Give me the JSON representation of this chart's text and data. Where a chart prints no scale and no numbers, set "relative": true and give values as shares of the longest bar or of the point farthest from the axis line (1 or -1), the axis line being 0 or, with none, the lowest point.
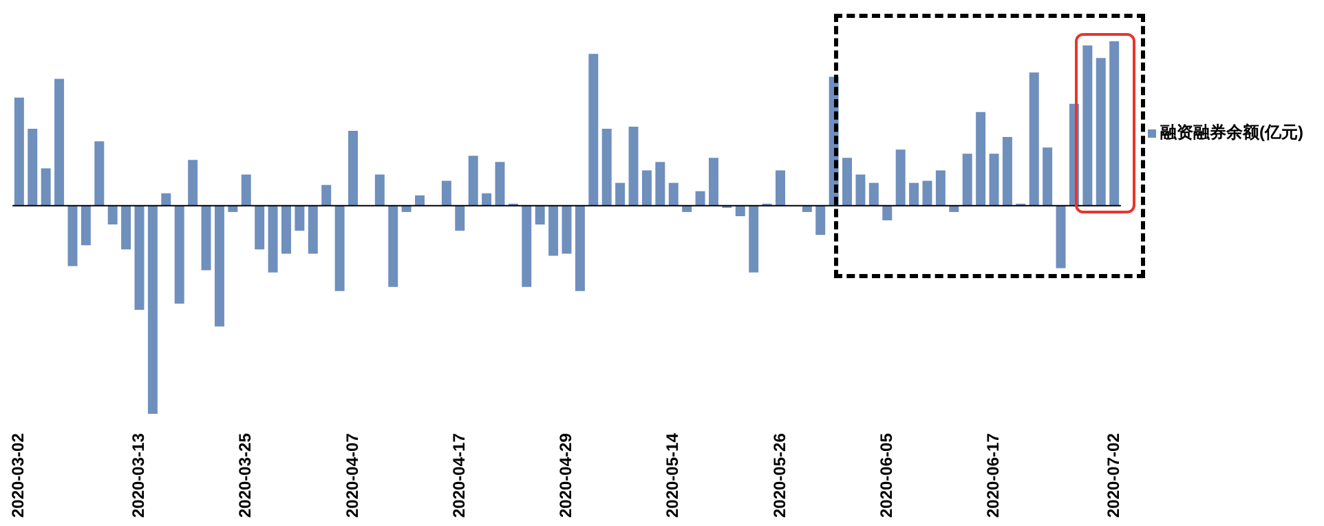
{
  "chart_data": {
    "type": "bar",
    "relative": true,
    "legend": "right",
    "categories": [
      "2020-03-02",
      null,
      null,
      null,
      null,
      null,
      null,
      null,
      null,
      "2020-03-13",
      null,
      null,
      null,
      null,
      null,
      null,
      null,
      "2020-03-25",
      null,
      null,
      null,
      null,
      null,
      null,
      null,
      "2020-04-07",
      null,
      null,
      null,
      null,
      null,
      null,
      null,
      "2020-04-17",
      null,
      null,
      null,
      null,
      null,
      null,
      null,
      "2020-04-29",
      null,
      null,
      null,
      null,
      null,
      null,
      null,
      "2020-05-14",
      null,
      null,
      null,
      null,
      null,
      null,
      null,
      "2020-05-26",
      null,
      null,
      null,
      null,
      null,
      null,
      null,
      "2020-06-05",
      null,
      null,
      null,
      null,
      null,
      null,
      null,
      "2020-06-17",
      null,
      null,
      null,
      null,
      null,
      null,
      null,
      null,
      "2020-07-02"
    ],
    "series": [
      {
        "name": "融资融券余额(亿元)",
        "color": "#6f8fbd",
        "values": [
          0.52,
          0.37,
          0.18,
          0.61,
          -0.29,
          -0.19,
          0.31,
          -0.09,
          -0.21,
          -0.5,
          -1,
          0.06,
          -0.47,
          0.22,
          -0.31,
          -0.58,
          -0.03,
          0.15,
          -0.21,
          -0.32,
          -0.23,
          -0.12,
          -0.23,
          0.1,
          -0.41,
          0.36,
          0,
          0.15,
          -0.39,
          -0.03,
          0.05,
          0,
          0.12,
          -0.12,
          0.24,
          0.06,
          0.21,
          0.01,
          -0.39,
          -0.09,
          -0.24,
          -0.23,
          -0.41,
          0.73,
          0.37,
          0.11,
          0.38,
          0.17,
          0.21,
          0.11,
          -0.03,
          0.07,
          0.23,
          -0.01,
          -0.05,
          -0.32,
          0.01,
          0.17,
          0,
          -0.03,
          -0.14,
          0.62,
          0.23,
          0.15,
          0.11,
          -0.07,
          0.27,
          0.11,
          0.12,
          0.17,
          -0.03,
          0.25,
          0.45,
          0.25,
          0.33,
          0.01,
          0.64,
          0.28,
          -0.3,
          0.49,
          0.77,
          0.71,
          0.79
        ]
      }
    ]
  }
}
